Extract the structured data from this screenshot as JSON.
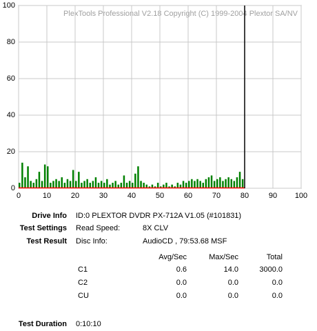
{
  "chart_data": {
    "type": "bar",
    "title": "PlexTools Professional V2.18 Copyright (C) 1999-2004 Plextor SA/NV",
    "x": [
      0,
      1,
      2,
      3,
      4,
      5,
      6,
      7,
      8,
      9,
      10,
      11,
      12,
      13,
      14,
      15,
      16,
      17,
      18,
      19,
      20,
      21,
      22,
      23,
      24,
      25,
      26,
      27,
      28,
      29,
      30,
      31,
      32,
      33,
      34,
      35,
      36,
      37,
      38,
      39,
      40,
      41,
      42,
      43,
      44,
      45,
      46,
      47,
      48,
      49,
      50,
      51,
      52,
      53,
      54,
      55,
      56,
      57,
      58,
      59,
      60,
      61,
      62,
      63,
      64,
      65,
      66,
      67,
      68,
      69,
      70,
      71,
      72,
      73,
      74,
      75,
      76,
      77,
      78,
      79
    ],
    "series": [
      {
        "name": "C1",
        "color": "#008000",
        "values": [
          3,
          14,
          6,
          12,
          4,
          3,
          5,
          9,
          4,
          13,
          12,
          3,
          4,
          5,
          4,
          6,
          3,
          5,
          4,
          10,
          4,
          9,
          3,
          4,
          5,
          3,
          4,
          6,
          3,
          4,
          3,
          5,
          2,
          3,
          4,
          2,
          3,
          7,
          3,
          4,
          3,
          8,
          12,
          4,
          3,
          2,
          1,
          2,
          1,
          3,
          1,
          2,
          3,
          1,
          2,
          1,
          3,
          2,
          4,
          3,
          4,
          5,
          4,
          5,
          4,
          3,
          5,
          6,
          7,
          4,
          5,
          6,
          4,
          5,
          6,
          5,
          4,
          6,
          9,
          5
        ]
      },
      {
        "name": "C2",
        "color": "#ff0000",
        "x": [
          0,
          80
        ],
        "values": [
          0,
          0
        ]
      }
    ],
    "end_marker": 80,
    "xlim": [
      0,
      100
    ],
    "xticks": [
      0,
      10,
      20,
      30,
      40,
      50,
      60,
      70,
      80,
      90,
      100
    ],
    "ylim": [
      0,
      100
    ],
    "yticks": [
      0,
      20,
      40,
      60,
      80,
      100
    ],
    "grid": true
  },
  "info": {
    "drive_info": {
      "label": "Drive Info",
      "value": "ID:0 PLEXTOR DVDR PX-712A V1.05 (#101831)"
    },
    "test_settings": {
      "label": "Test Settings",
      "key": "Read Speed:",
      "value": "8X CLV"
    },
    "test_result": {
      "label": "Test Result",
      "key": "Disc Info:",
      "value": "AudioCD , 79:53.68 MSF"
    },
    "table": {
      "header": [
        "Avg/Sec",
        "Max/Sec",
        "Total"
      ],
      "rows": [
        [
          "C1",
          "0.6",
          "14.0",
          "3000.0"
        ],
        [
          "C2",
          "0.0",
          "0.0",
          "0.0"
        ],
        [
          "CU",
          "0.0",
          "0.0",
          "0.0"
        ]
      ]
    },
    "test_duration": {
      "label": "Test Duration",
      "value": "0:10:10"
    }
  }
}
